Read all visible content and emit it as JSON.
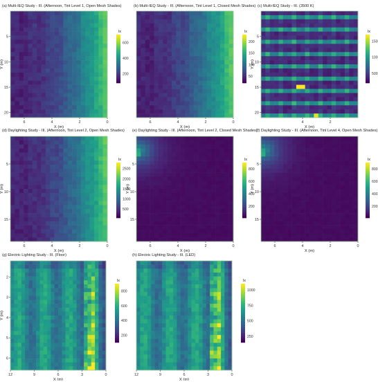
{
  "chart_data": [
    {
      "type": "heatmap",
      "title": "(a) Multi-IEQ Study - III. (Afternoon, Tint Level 1, Open Mesh Shades)",
      "xlabel": "X (m)",
      "ylabel": "Y (m)",
      "xticks": [
        "6",
        "4",
        "2",
        "0"
      ],
      "yticks": [
        "5",
        "10",
        "15",
        "20"
      ],
      "xlim": [
        7,
        0
      ],
      "ylim": [
        0,
        21
      ],
      "colorbar_label": "lx",
      "colorbar_ticks": [
        "600",
        "400",
        "200"
      ],
      "colorbar_range": [
        80,
        700
      ],
      "colormap": "viridis",
      "pattern": "window_gradient",
      "value_range": [
        80,
        700
      ],
      "ylabel_visible": true,
      "xlabel_visible": true
    },
    {
      "type": "heatmap",
      "title": "(b) Multi-IEQ Study - III. (Afternoon, Tint Level 1, Closed Mesh Shades)",
      "xlabel": "X (m)",
      "ylabel": "",
      "xticks": [
        "6",
        "4",
        "2",
        "0"
      ],
      "yticks": [],
      "xlim": [
        7,
        0
      ],
      "ylim": [
        0,
        21
      ],
      "colorbar_label": "lx",
      "colorbar_ticks": [
        "200",
        "150",
        "100",
        "50"
      ],
      "colorbar_range": [
        20,
        230
      ],
      "colormap": "viridis",
      "pattern": "window_gradient",
      "value_range": [
        20,
        230
      ],
      "ylabel_visible": false,
      "xlabel_visible": true
    },
    {
      "type": "heatmap",
      "title": "(c) Multi-IEQ Study - III. (3500 K)",
      "xlabel": "X (m)",
      "ylabel": "Y (m)",
      "xticks": [
        "4",
        "2"
      ],
      "yticks": [
        "5",
        "10",
        "15",
        "20"
      ],
      "xlim": [
        7,
        0
      ],
      "ylim": [
        0,
        21
      ],
      "colorbar_label": "lx",
      "colorbar_ticks": [
        "1500",
        "1000",
        "500"
      ],
      "colorbar_range": [
        200,
        1700
      ],
      "colormap": "viridis",
      "pattern": "stripes",
      "value_range": [
        200,
        1700
      ],
      "ylabel_visible": true,
      "xlabel_visible": true
    },
    {
      "type": "heatmap",
      "title": "(d) Daylighting Study - III. (Afternoon, Tint Level 2, Open Mesh Shades)",
      "xlabel": "X (m)",
      "ylabel": "Y (m)",
      "xticks": [
        "6",
        "4",
        "2",
        "0"
      ],
      "yticks": [
        "5",
        "10",
        "15"
      ],
      "xlim": [
        7,
        0
      ],
      "ylim": [
        0,
        19
      ],
      "colorbar_label": "lx",
      "colorbar_ticks": [
        "2500",
        "2000",
        "1500",
        "1000",
        "500"
      ],
      "colorbar_range": [
        50,
        2800
      ],
      "colormap": "viridis",
      "pattern": "window_gradient",
      "value_range": [
        50,
        2800
      ],
      "ylabel_visible": true,
      "xlabel_visible": true
    },
    {
      "type": "heatmap",
      "title": "(e) Daylighting Study - III. (Afternoon, Tint Level 2, Closed Mesh Shades)",
      "xlabel": "X (m)",
      "ylabel": "Y (m)",
      "xticks": [
        "6",
        "4",
        "2",
        "0"
      ],
      "yticks": [
        "5",
        "10",
        "15"
      ],
      "xlim": [
        7,
        0
      ],
      "ylim": [
        0,
        19
      ],
      "colorbar_label": "lx",
      "colorbar_ticks": [
        "800",
        "600",
        "400",
        "200"
      ],
      "colorbar_range": [
        10,
        900
      ],
      "colormap": "viridis",
      "pattern": "corner_spot",
      "value_range": [
        10,
        900
      ],
      "ylabel_visible": true,
      "xlabel_visible": true
    },
    {
      "type": "heatmap",
      "title": "(f) Daylighting Study - III. (Afternoon, Tint Level 4, Open Mesh Shades)",
      "xlabel": "X (m)",
      "ylabel": "Y (m)",
      "xticks": [
        "6",
        "4",
        "2",
        "0"
      ],
      "yticks": [
        "5",
        "10",
        "15"
      ],
      "xlim": [
        7,
        0
      ],
      "ylim": [
        0,
        19
      ],
      "colorbar_label": "lx",
      "colorbar_ticks": [
        "800",
        "600",
        "400",
        "200"
      ],
      "colorbar_range": [
        10,
        900
      ],
      "colormap": "viridis",
      "pattern": "corner_spot",
      "value_range": [
        10,
        900
      ],
      "ylabel_visible": true,
      "xlabel_visible": true
    },
    {
      "type": "heatmap",
      "title": "(g) Electric Lighting Study - III. (Floor)",
      "xlabel": "X (m)",
      "ylabel": "Y (m)",
      "xticks": [
        "12",
        "9",
        "6",
        "3",
        "0"
      ],
      "yticks": [
        "2",
        "3",
        "4",
        "5",
        "6"
      ],
      "xlim": [
        12,
        0
      ],
      "ylim": [
        1.2,
        6.6
      ],
      "colorbar_label": "lx",
      "colorbar_ticks": [
        "800",
        "600",
        "400",
        "200"
      ],
      "colorbar_range": [
        100,
        900
      ],
      "colormap": "viridis",
      "pattern": "electric",
      "value_range": [
        100,
        900
      ],
      "ylabel_visible": true,
      "xlabel_visible": true
    },
    {
      "type": "heatmap",
      "title": "(h) Electric Lighting Study - III. (LED)",
      "xlabel": "X (m)",
      "ylabel": "",
      "xticks": [
        "12",
        "9",
        "6",
        "3",
        "0"
      ],
      "yticks": [],
      "xlim": [
        12,
        0
      ],
      "ylim": [
        1.2,
        6.6
      ],
      "colorbar_label": "lx",
      "colorbar_ticks": [
        "1000",
        "750",
        "500",
        "250"
      ],
      "colorbar_range": [
        150,
        1100
      ],
      "colormap": "viridis",
      "pattern": "electric",
      "value_range": [
        150,
        1100
      ],
      "ylabel_visible": false,
      "xlabel_visible": true
    }
  ]
}
